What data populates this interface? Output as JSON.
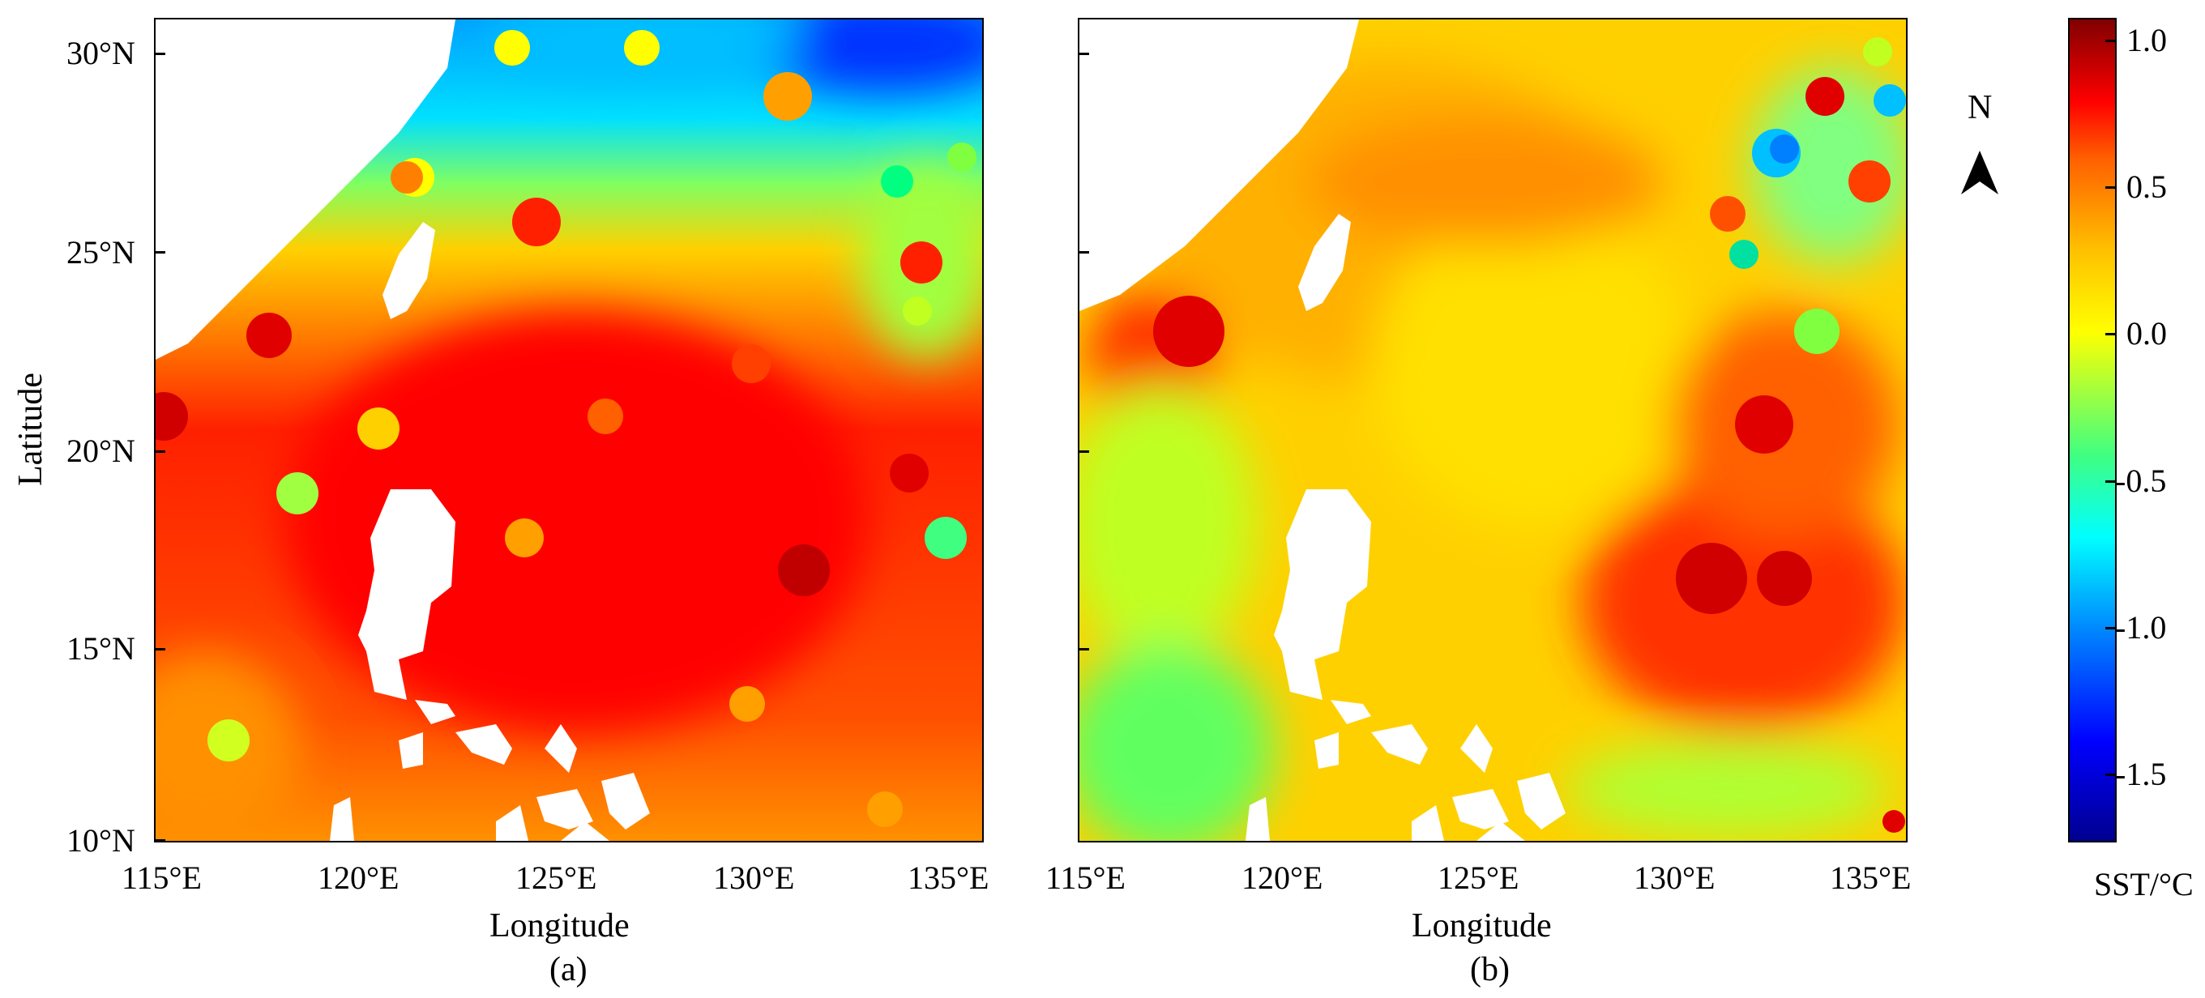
{
  "panels": [
    {
      "id": "a",
      "label": "(a)",
      "xlabel": "Longitude",
      "ylabel": "Latitude",
      "x_ticks": [
        "115°E",
        "120°E",
        "125°E",
        "130°E",
        "135°E"
      ],
      "y_ticks": [
        "30°N",
        "25°N",
        "20°N",
        "15°N",
        "10°N"
      ]
    },
    {
      "id": "b",
      "label": "(b)",
      "xlabel": "Longitude",
      "x_ticks": [
        "115°E",
        "120°E",
        "125°E",
        "130°E",
        "135°E"
      ]
    }
  ],
  "colorbar": {
    "title": "SST/°C",
    "ticks": [
      "1.0",
      "0.5",
      "0.0",
      "-0.5",
      "-1.0",
      "-1.5"
    ],
    "tick_values": [
      1.0,
      0.5,
      0.0,
      -0.5,
      -1.0,
      -1.5
    ],
    "range": [
      -1.75,
      1.05
    ],
    "colormap": "jet"
  },
  "north_arrow": {
    "label": "N"
  },
  "chart_data": {
    "type": "heatmap",
    "x_range": [
      115,
      136
    ],
    "y_range": [
      10,
      31
    ],
    "x_tick_values": [
      115,
      120,
      125,
      130,
      135
    ],
    "y_tick_values": [
      30,
      25,
      20,
      15,
      10
    ],
    "value_range": [
      -1.75,
      1.05
    ],
    "panels": [
      "(a)",
      "(b)"
    ]
  },
  "colors": {
    "land": "#ffffff",
    "frame": "#000000"
  }
}
